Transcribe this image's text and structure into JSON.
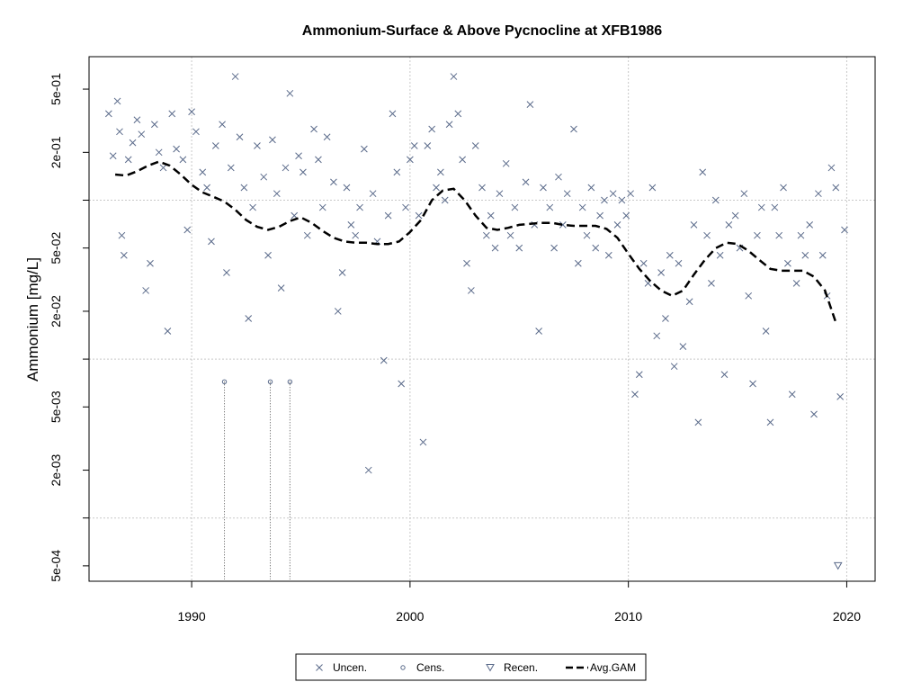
{
  "chart_data": {
    "type": "scatter",
    "title": "Ammonium-Surface & Above Pycnocline at XFB1986",
    "xlabel": "",
    "ylabel": "Ammonium [mg/L]",
    "y_scale": "log",
    "xlim": [
      1985.3,
      2021.3
    ],
    "ylim": [
      0.0004,
      0.8
    ],
    "x_ticks": [
      1990,
      2000,
      2010,
      2020
    ],
    "x_tick_labels": [
      "1990",
      "2000",
      "2010",
      "2020"
    ],
    "y_ticks": [
      0.0005,
      0.002,
      0.005,
      0.02,
      0.05,
      0.2,
      0.5
    ],
    "y_tick_labels": [
      "5e-04",
      "2e-03",
      "5e-03",
      "2e-02",
      "5e-02",
      "2e-01",
      "5e-01"
    ],
    "y_minor_ticks": [
      0.001,
      0.01,
      0.1
    ],
    "grid": true,
    "grid_y": [
      0.001,
      0.01,
      0.1
    ],
    "grid_x": [
      1990,
      2000,
      2010,
      2020
    ],
    "legend_position": "bottom",
    "legend": [
      {
        "label": "Uncen.",
        "symbol": "x"
      },
      {
        "label": "Cens.",
        "symbol": "o"
      },
      {
        "label": "Recen.",
        "symbol": "triangle-down"
      },
      {
        "label": "Avg.GAM",
        "symbol": "dashed-line"
      }
    ],
    "colors": {
      "points": "#5a6a8a",
      "gam": "#000000",
      "grid": "#c8c8c8"
    },
    "series": [
      {
        "name": "Uncen.",
        "points": [
          [
            1986.2,
            0.35
          ],
          [
            1986.4,
            0.19
          ],
          [
            1986.6,
            0.42
          ],
          [
            1986.7,
            0.27
          ],
          [
            1986.8,
            0.06
          ],
          [
            1986.9,
            0.045
          ],
          [
            1987.1,
            0.18
          ],
          [
            1987.3,
            0.23
          ],
          [
            1987.5,
            0.32
          ],
          [
            1987.7,
            0.26
          ],
          [
            1987.9,
            0.027
          ],
          [
            1988.1,
            0.04
          ],
          [
            1988.3,
            0.3
          ],
          [
            1988.5,
            0.2
          ],
          [
            1988.7,
            0.16
          ],
          [
            1988.9,
            0.015
          ],
          [
            1989.1,
            0.35
          ],
          [
            1989.3,
            0.21
          ],
          [
            1989.6,
            0.18
          ],
          [
            1989.8,
            0.065
          ],
          [
            1990.0,
            0.36
          ],
          [
            1990.2,
            0.27
          ],
          [
            1990.5,
            0.15
          ],
          [
            1990.7,
            0.12
          ],
          [
            1990.9,
            0.055
          ],
          [
            1991.1,
            0.22
          ],
          [
            1991.4,
            0.3
          ],
          [
            1991.6,
            0.035
          ],
          [
            1991.8,
            0.16
          ],
          [
            1992.0,
            0.6
          ],
          [
            1992.2,
            0.25
          ],
          [
            1992.4,
            0.12
          ],
          [
            1992.6,
            0.018
          ],
          [
            1992.8,
            0.09
          ],
          [
            1993.0,
            0.22
          ],
          [
            1993.3,
            0.14
          ],
          [
            1993.5,
            0.045
          ],
          [
            1993.7,
            0.24
          ],
          [
            1993.9,
            0.11
          ],
          [
            1994.1,
            0.028
          ],
          [
            1994.3,
            0.16
          ],
          [
            1994.5,
            0.47
          ],
          [
            1994.7,
            0.08
          ],
          [
            1994.9,
            0.19
          ],
          [
            1995.1,
            0.15
          ],
          [
            1995.3,
            0.06
          ],
          [
            1995.6,
            0.28
          ],
          [
            1995.8,
            0.18
          ],
          [
            1996.0,
            0.09
          ],
          [
            1996.2,
            0.25
          ],
          [
            1996.5,
            0.13
          ],
          [
            1996.7,
            0.02
          ],
          [
            1996.9,
            0.035
          ],
          [
            1997.1,
            0.12
          ],
          [
            1997.3,
            0.07
          ],
          [
            1997.5,
            0.06
          ],
          [
            1997.7,
            0.09
          ],
          [
            1997.9,
            0.21
          ],
          [
            1998.1,
            0.002
          ],
          [
            1998.3,
            0.11
          ],
          [
            1998.5,
            0.055
          ],
          [
            1998.8,
            0.0098
          ],
          [
            1999.0,
            0.08
          ],
          [
            1999.2,
            0.35
          ],
          [
            1999.4,
            0.15
          ],
          [
            1999.6,
            0.007
          ],
          [
            1999.8,
            0.09
          ],
          [
            2000.0,
            0.18
          ],
          [
            2000.2,
            0.22
          ],
          [
            2000.4,
            0.08
          ],
          [
            2000.6,
            0.003
          ],
          [
            2000.8,
            0.22
          ],
          [
            2001.0,
            0.28
          ],
          [
            2001.2,
            0.12
          ],
          [
            2001.4,
            0.15
          ],
          [
            2001.6,
            0.1
          ],
          [
            2001.8,
            0.3
          ],
          [
            2002.0,
            0.6
          ],
          [
            2002.2,
            0.35
          ],
          [
            2002.4,
            0.18
          ],
          [
            2002.6,
            0.04
          ],
          [
            2002.8,
            0.027
          ],
          [
            2003.0,
            0.22
          ],
          [
            2003.3,
            0.12
          ],
          [
            2003.5,
            0.06
          ],
          [
            2003.7,
            0.08
          ],
          [
            2003.9,
            0.05
          ],
          [
            2004.1,
            0.11
          ],
          [
            2004.4,
            0.17
          ],
          [
            2004.6,
            0.06
          ],
          [
            2004.8,
            0.09
          ],
          [
            2005.0,
            0.05
          ],
          [
            2005.3,
            0.13
          ],
          [
            2005.5,
            0.4
          ],
          [
            2005.7,
            0.07
          ],
          [
            2005.9,
            0.015
          ],
          [
            2006.1,
            0.12
          ],
          [
            2006.4,
            0.09
          ],
          [
            2006.6,
            0.05
          ],
          [
            2006.8,
            0.14
          ],
          [
            2007.0,
            0.07
          ],
          [
            2007.2,
            0.11
          ],
          [
            2007.5,
            0.28
          ],
          [
            2007.7,
            0.04
          ],
          [
            2007.9,
            0.09
          ],
          [
            2008.1,
            0.06
          ],
          [
            2008.3,
            0.12
          ],
          [
            2008.5,
            0.05
          ],
          [
            2008.7,
            0.08
          ],
          [
            2008.9,
            0.1
          ],
          [
            2009.1,
            0.045
          ],
          [
            2009.3,
            0.11
          ],
          [
            2009.5,
            0.07
          ],
          [
            2009.7,
            0.1
          ],
          [
            2009.9,
            0.08
          ],
          [
            2010.1,
            0.11
          ],
          [
            2010.3,
            0.006
          ],
          [
            2010.5,
            0.008
          ],
          [
            2010.7,
            0.04
          ],
          [
            2010.9,
            0.03
          ],
          [
            2011.1,
            0.12
          ],
          [
            2011.3,
            0.014
          ],
          [
            2011.5,
            0.035
          ],
          [
            2011.7,
            0.018
          ],
          [
            2011.9,
            0.045
          ],
          [
            2012.1,
            0.009
          ],
          [
            2012.3,
            0.04
          ],
          [
            2012.5,
            0.012
          ],
          [
            2012.8,
            0.023
          ],
          [
            2013.0,
            0.07
          ],
          [
            2013.2,
            0.004
          ],
          [
            2013.4,
            0.15
          ],
          [
            2013.6,
            0.06
          ],
          [
            2013.8,
            0.03
          ],
          [
            2014.0,
            0.1
          ],
          [
            2014.2,
            0.045
          ],
          [
            2014.4,
            0.008
          ],
          [
            2014.6,
            0.07
          ],
          [
            2014.9,
            0.08
          ],
          [
            2015.1,
            0.05
          ],
          [
            2015.3,
            0.11
          ],
          [
            2015.5,
            0.025
          ],
          [
            2015.7,
            0.007
          ],
          [
            2015.9,
            0.06
          ],
          [
            2016.1,
            0.09
          ],
          [
            2016.3,
            0.015
          ],
          [
            2016.5,
            0.004
          ],
          [
            2016.7,
            0.09
          ],
          [
            2016.9,
            0.06
          ],
          [
            2017.1,
            0.12
          ],
          [
            2017.3,
            0.04
          ],
          [
            2017.5,
            0.006
          ],
          [
            2017.7,
            0.03
          ],
          [
            2017.9,
            0.06
          ],
          [
            2018.1,
            0.045
          ],
          [
            2018.3,
            0.07
          ],
          [
            2018.5,
            0.0045
          ],
          [
            2018.7,
            0.11
          ],
          [
            2018.9,
            0.045
          ],
          [
            2019.1,
            0.025
          ],
          [
            2019.3,
            0.16
          ],
          [
            2019.5,
            0.12
          ],
          [
            2019.7,
            0.0058
          ],
          [
            2019.9,
            0.065
          ]
        ]
      },
      {
        "name": "Cens.",
        "points": [
          [
            1991.5,
            0.0072
          ],
          [
            1993.6,
            0.0072
          ],
          [
            1994.5,
            0.0072
          ]
        ]
      },
      {
        "name": "Recen.",
        "points": [
          [
            2019.6,
            0.0005
          ]
        ]
      },
      {
        "name": "Avg.GAM",
        "points": [
          [
            1986.5,
            0.145
          ],
          [
            1987.0,
            0.143
          ],
          [
            1987.5,
            0.152
          ],
          [
            1988.0,
            0.165
          ],
          [
            1988.5,
            0.175
          ],
          [
            1989.0,
            0.165
          ],
          [
            1989.5,
            0.145
          ],
          [
            1990.0,
            0.125
          ],
          [
            1990.5,
            0.112
          ],
          [
            1991.0,
            0.105
          ],
          [
            1991.5,
            0.098
          ],
          [
            1992.0,
            0.087
          ],
          [
            1992.5,
            0.075
          ],
          [
            1993.0,
            0.068
          ],
          [
            1993.5,
            0.065
          ],
          [
            1994.0,
            0.068
          ],
          [
            1994.5,
            0.074
          ],
          [
            1995.0,
            0.078
          ],
          [
            1995.5,
            0.072
          ],
          [
            1996.0,
            0.064
          ],
          [
            1996.5,
            0.058
          ],
          [
            1997.0,
            0.055
          ],
          [
            1997.5,
            0.054
          ],
          [
            1998.0,
            0.054
          ],
          [
            1998.5,
            0.053
          ],
          [
            1999.0,
            0.053
          ],
          [
            1999.5,
            0.055
          ],
          [
            2000.0,
            0.063
          ],
          [
            2000.5,
            0.075
          ],
          [
            2001.0,
            0.1
          ],
          [
            2001.5,
            0.115
          ],
          [
            2002.0,
            0.118
          ],
          [
            2002.5,
            0.1
          ],
          [
            2003.0,
            0.08
          ],
          [
            2003.5,
            0.067
          ],
          [
            2004.0,
            0.065
          ],
          [
            2004.5,
            0.067
          ],
          [
            2005.0,
            0.07
          ],
          [
            2005.5,
            0.071
          ],
          [
            2006.0,
            0.072
          ],
          [
            2006.5,
            0.072
          ],
          [
            2007.0,
            0.07
          ],
          [
            2007.5,
            0.069
          ],
          [
            2008.0,
            0.069
          ],
          [
            2008.5,
            0.069
          ],
          [
            2009.0,
            0.066
          ],
          [
            2009.5,
            0.058
          ],
          [
            2010.0,
            0.046
          ],
          [
            2010.5,
            0.037
          ],
          [
            2011.0,
            0.031
          ],
          [
            2011.5,
            0.027
          ],
          [
            2012.0,
            0.025
          ],
          [
            2012.5,
            0.027
          ],
          [
            2013.0,
            0.034
          ],
          [
            2013.5,
            0.042
          ],
          [
            2014.0,
            0.05
          ],
          [
            2014.5,
            0.054
          ],
          [
            2015.0,
            0.053
          ],
          [
            2015.5,
            0.048
          ],
          [
            2016.0,
            0.042
          ],
          [
            2016.5,
            0.037
          ],
          [
            2017.0,
            0.036
          ],
          [
            2017.5,
            0.036
          ],
          [
            2018.0,
            0.036
          ],
          [
            2018.5,
            0.033
          ],
          [
            2019.0,
            0.027
          ],
          [
            2019.5,
            0.017
          ]
        ]
      }
    ]
  }
}
